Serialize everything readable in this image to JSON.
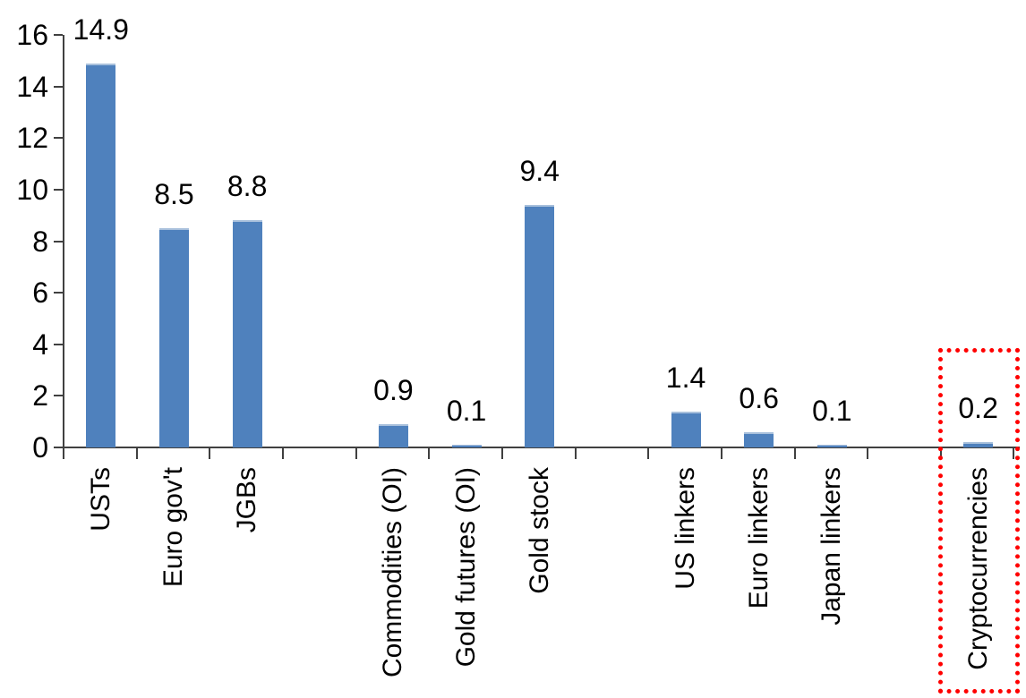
{
  "chart_data": {
    "type": "bar",
    "title": "",
    "xlabel": "",
    "ylabel": "",
    "categories": [
      "USTs",
      "Euro gov't",
      "JGBs",
      "Commodities (OI)",
      "Gold futures (OI)",
      "Gold stock",
      "US linkers",
      "Euro linkers",
      "Japan linkers",
      "Cryptocurrencies"
    ],
    "values": [
      14.9,
      8.5,
      8.8,
      0.9,
      0.1,
      9.4,
      1.4,
      0.6,
      0.1,
      0.2
    ],
    "data_labels": [
      "14.9",
      "8.5",
      "8.8",
      "0.9",
      "0.1",
      "9.4",
      "1.4",
      "0.6",
      "0.1",
      "0.2"
    ],
    "slot_positions": [
      1,
      2,
      3,
      5,
      6,
      7,
      9,
      10,
      11,
      13
    ],
    "total_slots": 13,
    "category_groups_note": "empty spacer slots separate groups: govt bonds | gold/commodities | inflation linkers | crypto",
    "ylim": [
      0,
      16
    ],
    "yticks": [
      0,
      2,
      4,
      6,
      8,
      10,
      12,
      14,
      16
    ],
    "grid": false,
    "legend": false,
    "category_label_rotation_deg": 90,
    "bar_color": "#4F81BD",
    "bar_top_edge_color": "#A8C0DC",
    "axis_color": "#404040",
    "text_color": "#000000",
    "highlight": {
      "category": "Cryptocurrencies",
      "value": 0.2,
      "style": "red-dotted-rectangle",
      "color": "#FF0000"
    }
  }
}
